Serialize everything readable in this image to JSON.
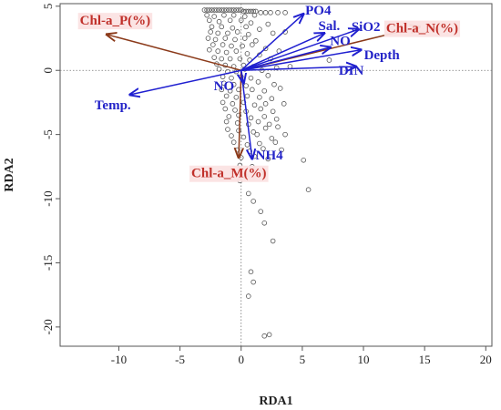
{
  "chart_data": {
    "type": "scatter",
    "xlabel": "RDA1",
    "ylabel": "RDA2",
    "xlim": [
      -14.8,
      20.5
    ],
    "ylim": [
      -21.5,
      5.2
    ],
    "xticks": [
      -10,
      -5,
      0,
      5,
      10,
      15,
      20
    ],
    "yticks": [
      5,
      0,
      -5,
      -10,
      -15,
      -20
    ],
    "reference_lines": {
      "x": 0,
      "y": 0,
      "style": "dotted"
    },
    "point_color": "#555555",
    "brown_arrow_color": "#8b3a1a",
    "blue_arrow_color": "#1f1fd0",
    "arrows": [
      {
        "label": "Chl-a_P(%)",
        "group": "brown",
        "x": -11.0,
        "y": 2.8,
        "lx": -10.3,
        "ly": 3.8
      },
      {
        "label": "Chl-a_N(%)",
        "group": "brown",
        "x": 14.6,
        "y": 3.4,
        "lx": 14.8,
        "ly": 3.2
      },
      {
        "label": "Chl-a_M(%)",
        "group": "brown",
        "x": -0.2,
        "y": -6.8,
        "lx": -1.0,
        "ly": -8.1
      },
      {
        "label": "PO4",
        "group": "blue",
        "x": 5.1,
        "y": 4.4,
        "lx": 6.3,
        "ly": 4.6
      },
      {
        "label": "Sal.",
        "group": "blue",
        "x": 6.8,
        "y": 2.9,
        "lx": 7.2,
        "ly": 3.4
      },
      {
        "label": "SiO2",
        "group": "blue",
        "x": 9.6,
        "y": 3.2,
        "lx": 10.2,
        "ly": 3.3
      },
      {
        "label": "NO",
        "group": "blue",
        "x": 7.3,
        "y": 1.8,
        "lx": 8.1,
        "ly": 2.2
      },
      {
        "label": "Depth",
        "group": "blue",
        "x": 9.8,
        "y": 1.6,
        "lx": 11.5,
        "ly": 1.1
      },
      {
        "label": "DIN",
        "group": "blue",
        "x": 9.4,
        "y": 0.3,
        "lx": 9.0,
        "ly": -0.1
      },
      {
        "label": "Temp.",
        "group": "blue",
        "x": -9.1,
        "y": -1.9,
        "lx": -10.5,
        "ly": -2.8
      },
      {
        "label": "NO",
        "group": "blue",
        "x": 0.2,
        "y": -1.0,
        "lx": -1.4,
        "ly": -1.3
      },
      {
        "label": "NH4",
        "group": "blue",
        "x": 0.9,
        "y": -6.9,
        "lx": 2.3,
        "ly": -6.7
      }
    ],
    "points": [
      [
        -3,
        4.7
      ],
      [
        -2.8,
        4.7
      ],
      [
        -2.6,
        4.7
      ],
      [
        -2.4,
        4.7
      ],
      [
        -2.2,
        4.7
      ],
      [
        -2.0,
        4.7
      ],
      [
        -1.8,
        4.7
      ],
      [
        -1.6,
        4.7
      ],
      [
        -1.4,
        4.7
      ],
      [
        -1.2,
        4.7
      ],
      [
        -1.0,
        4.7
      ],
      [
        -0.8,
        4.7
      ],
      [
        -0.6,
        4.7
      ],
      [
        -0.4,
        4.7
      ],
      [
        -0.2,
        4.7
      ],
      [
        0.0,
        4.7
      ],
      [
        0.2,
        4.6
      ],
      [
        0.4,
        4.6
      ],
      [
        0.6,
        4.6
      ],
      [
        0.8,
        4.6
      ],
      [
        1.0,
        4.6
      ],
      [
        1.2,
        4.6
      ],
      [
        1.6,
        4.5
      ],
      [
        2.0,
        4.5
      ],
      [
        2.4,
        4.5
      ],
      [
        3.0,
        4.5
      ],
      [
        3.6,
        4.5
      ],
      [
        -2.8,
        4.3
      ],
      [
        -2.2,
        4.2
      ],
      [
        -1.4,
        4.3
      ],
      [
        -0.6,
        4.3
      ],
      [
        0.3,
        4.2
      ],
      [
        1.1,
        4.3
      ],
      [
        -2.6,
        3.9
      ],
      [
        -1.8,
        3.8
      ],
      [
        -0.9,
        3.9
      ],
      [
        0.0,
        3.9
      ],
      [
        0.8,
        3.7
      ],
      [
        2.2,
        3.6
      ],
      [
        -2.4,
        3.4
      ],
      [
        -1.6,
        3.4
      ],
      [
        -0.7,
        3.3
      ],
      [
        0.4,
        3.4
      ],
      [
        1.5,
        3.2
      ],
      [
        -2.5,
        3.0
      ],
      [
        -1.9,
        2.9
      ],
      [
        -1.1,
        2.9
      ],
      [
        -0.3,
        3.0
      ],
      [
        0.6,
        2.8
      ],
      [
        2.6,
        2.9
      ],
      [
        3.6,
        3.0
      ],
      [
        -2.7,
        2.5
      ],
      [
        -2.1,
        2.4
      ],
      [
        -1.3,
        2.5
      ],
      [
        -0.5,
        2.4
      ],
      [
        0.3,
        2.5
      ],
      [
        1.2,
        2.3
      ],
      [
        -2.3,
        2.0
      ],
      [
        -1.5,
        2.0
      ],
      [
        -0.8,
        1.9
      ],
      [
        0.1,
        1.9
      ],
      [
        0.9,
        2.0
      ],
      [
        2.0,
        1.7
      ],
      [
        -2.6,
        1.6
      ],
      [
        -1.9,
        1.5
      ],
      [
        -1.2,
        1.4
      ],
      [
        -0.4,
        1.5
      ],
      [
        0.5,
        1.3
      ],
      [
        1.5,
        1.2
      ],
      [
        3.1,
        1.5
      ],
      [
        -2.2,
        1.0
      ],
      [
        -1.6,
        0.9
      ],
      [
        -0.9,
        0.9
      ],
      [
        -0.1,
        0.9
      ],
      [
        0.7,
        0.8
      ],
      [
        2.4,
        0.9
      ],
      [
        -2.0,
        0.5
      ],
      [
        -1.3,
        0.4
      ],
      [
        -0.6,
        0.3
      ],
      [
        0.2,
        0.4
      ],
      [
        1.0,
        0.3
      ],
      [
        -1.8,
        0.1
      ],
      [
        -1.1,
        -0.1
      ],
      [
        -0.4,
        -0.1
      ],
      [
        0.3,
        0.1
      ],
      [
        1.7,
        0.0
      ],
      [
        2.9,
        0.2
      ],
      [
        4.0,
        0.3
      ],
      [
        7.2,
        0.8
      ],
      [
        -1.5,
        -0.5
      ],
      [
        -0.8,
        -0.6
      ],
      [
        0.0,
        -0.5
      ],
      [
        0.8,
        -0.6
      ],
      [
        2.2,
        -0.4
      ],
      [
        -1.4,
        -1.0
      ],
      [
        -0.6,
        -1.1
      ],
      [
        0.4,
        -1.2
      ],
      [
        1.4,
        -0.9
      ],
      [
        2.7,
        -1.1
      ],
      [
        -1.6,
        -1.5
      ],
      [
        -0.9,
        -1.6
      ],
      [
        -0.2,
        -1.5
      ],
      [
        0.9,
        -1.5
      ],
      [
        1.9,
        -1.6
      ],
      [
        3.2,
        -1.4
      ],
      [
        -1.2,
        -2.0
      ],
      [
        -0.4,
        -2.1
      ],
      [
        0.5,
        -2.0
      ],
      [
        1.5,
        -2.1
      ],
      [
        2.5,
        -2.2
      ],
      [
        -1.5,
        -2.5
      ],
      [
        -0.7,
        -2.6
      ],
      [
        0.2,
        -2.5
      ],
      [
        1.1,
        -2.7
      ],
      [
        2.0,
        -2.6
      ],
      [
        3.5,
        -2.6
      ],
      [
        -1.3,
        -3.0
      ],
      [
        -0.5,
        -3.1
      ],
      [
        0.4,
        -3.2
      ],
      [
        1.6,
        -3.0
      ],
      [
        2.6,
        -3.2
      ],
      [
        -1.0,
        -3.6
      ],
      [
        -0.2,
        -3.5
      ],
      [
        0.8,
        -3.7
      ],
      [
        1.9,
        -3.6
      ],
      [
        2.9,
        -3.8
      ],
      [
        -1.2,
        -4.0
      ],
      [
        -0.3,
        -4.1
      ],
      [
        0.6,
        -4.2
      ],
      [
        1.4,
        -4.0
      ],
      [
        2.3,
        -4.2
      ],
      [
        -1.1,
        -4.6
      ],
      [
        -0.2,
        -4.7
      ],
      [
        1.0,
        -4.8
      ],
      [
        2.0,
        -4.5
      ],
      [
        3.0,
        -4.4
      ],
      [
        -0.8,
        -5.1
      ],
      [
        0.2,
        -5.2
      ],
      [
        1.3,
        -5.0
      ],
      [
        2.5,
        -5.3
      ],
      [
        3.6,
        -5.0
      ],
      [
        -0.6,
        -5.6
      ],
      [
        0.5,
        -5.8
      ],
      [
        1.5,
        -5.7
      ],
      [
        2.8,
        -5.6
      ],
      [
        -0.3,
        -6.2
      ],
      [
        0.7,
        -6.3
      ],
      [
        1.8,
        -6.1
      ],
      [
        3.3,
        -6.2
      ],
      [
        0.0,
        -6.8
      ],
      [
        1.1,
        -6.7
      ],
      [
        2.2,
        -6.9
      ],
      [
        -0.1,
        -7.4
      ],
      [
        0.9,
        -7.5
      ],
      [
        5.1,
        -7.0
      ],
      [
        0.3,
        -8.2
      ],
      [
        1.6,
        -8.0
      ],
      [
        -0.1,
        -8.6
      ],
      [
        5.5,
        -9.3
      ],
      [
        0.6,
        -9.6
      ],
      [
        1.0,
        -10.2
      ],
      [
        1.6,
        -11.0
      ],
      [
        1.9,
        -11.9
      ],
      [
        2.6,
        -13.3
      ],
      [
        0.8,
        -15.7
      ],
      [
        1.0,
        -16.5
      ],
      [
        0.6,
        -17.6
      ],
      [
        1.9,
        -20.7
      ],
      [
        2.3,
        -20.6
      ]
    ]
  }
}
